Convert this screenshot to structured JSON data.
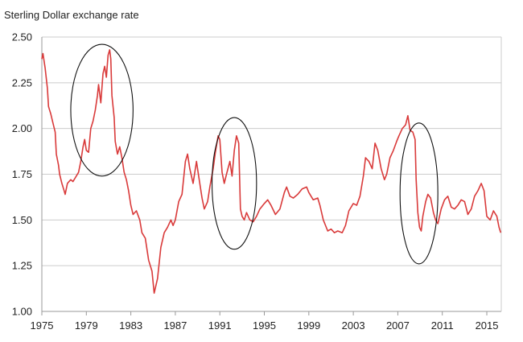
{
  "chart_data": {
    "type": "line",
    "title": "Sterling Dollar exchange rate",
    "xlabel": "",
    "ylabel": "",
    "xlim": [
      1975.0,
      2016.3
    ],
    "ylim": [
      1.0,
      2.5
    ],
    "y_ticks": [
      "1.00",
      "1.25",
      "1.50",
      "1.75",
      "2.00",
      "2.25",
      "2.50"
    ],
    "x_ticks": [
      "1975",
      "1979",
      "1983",
      "1987",
      "1991",
      "1995",
      "1999",
      "2003",
      "2007",
      "2011",
      "2015"
    ],
    "grid": "horizontal",
    "legend": "none",
    "colors": {
      "line": "#d93a3a",
      "grid": "#cccccc",
      "axis": "#999999",
      "circle": "#111111"
    },
    "annotations": [
      {
        "shape": "ellipse",
        "cx": 1980.4,
        "cy": 2.1,
        "rx": 2.8,
        "ry": 0.36
      },
      {
        "shape": "ellipse",
        "cx": 1992.3,
        "cy": 1.7,
        "rx": 2.0,
        "ry": 0.36
      },
      {
        "shape": "ellipse",
        "cx": 2008.9,
        "cy": 1.645,
        "rx": 1.7,
        "ry": 0.385
      }
    ],
    "series": [
      {
        "values": [
          [
            1975.0,
            2.38
          ],
          [
            1975.1,
            2.41
          ],
          [
            1975.3,
            2.33
          ],
          [
            1975.5,
            2.22
          ],
          [
            1975.6,
            2.12
          ],
          [
            1975.8,
            2.08
          ],
          [
            1976.0,
            2.03
          ],
          [
            1976.2,
            1.98
          ],
          [
            1976.3,
            1.86
          ],
          [
            1976.5,
            1.8
          ],
          [
            1976.6,
            1.75
          ],
          [
            1976.8,
            1.7
          ],
          [
            1977.0,
            1.66
          ],
          [
            1977.1,
            1.64
          ],
          [
            1977.3,
            1.7
          ],
          [
            1977.6,
            1.72
          ],
          [
            1977.8,
            1.71
          ],
          [
            1978.0,
            1.73
          ],
          [
            1978.3,
            1.76
          ],
          [
            1978.5,
            1.82
          ],
          [
            1978.7,
            1.9
          ],
          [
            1978.85,
            1.94
          ],
          [
            1979.0,
            1.88
          ],
          [
            1979.2,
            1.87
          ],
          [
            1979.4,
            2.0
          ],
          [
            1979.6,
            2.04
          ],
          [
            1979.8,
            2.1
          ],
          [
            1980.0,
            2.18
          ],
          [
            1980.1,
            2.24
          ],
          [
            1980.3,
            2.14
          ],
          [
            1980.5,
            2.3
          ],
          [
            1980.65,
            2.34
          ],
          [
            1980.8,
            2.28
          ],
          [
            1980.95,
            2.4
          ],
          [
            1981.1,
            2.43
          ],
          [
            1981.2,
            2.38
          ],
          [
            1981.3,
            2.18
          ],
          [
            1981.5,
            2.06
          ],
          [
            1981.6,
            1.93
          ],
          [
            1981.8,
            1.86
          ],
          [
            1982.0,
            1.9
          ],
          [
            1982.2,
            1.84
          ],
          [
            1982.4,
            1.76
          ],
          [
            1982.6,
            1.72
          ],
          [
            1982.8,
            1.66
          ],
          [
            1983.0,
            1.58
          ],
          [
            1983.2,
            1.53
          ],
          [
            1983.5,
            1.55
          ],
          [
            1983.8,
            1.5
          ],
          [
            1984.0,
            1.43
          ],
          [
            1984.3,
            1.4
          ],
          [
            1984.6,
            1.28
          ],
          [
            1984.9,
            1.22
          ],
          [
            1985.1,
            1.1
          ],
          [
            1985.4,
            1.18
          ],
          [
            1985.7,
            1.35
          ],
          [
            1986.0,
            1.43
          ],
          [
            1986.3,
            1.46
          ],
          [
            1986.6,
            1.5
          ],
          [
            1986.8,
            1.47
          ],
          [
            1987.0,
            1.5
          ],
          [
            1987.3,
            1.6
          ],
          [
            1987.6,
            1.64
          ],
          [
            1987.9,
            1.82
          ],
          [
            1988.1,
            1.86
          ],
          [
            1988.3,
            1.78
          ],
          [
            1988.6,
            1.7
          ],
          [
            1988.9,
            1.82
          ],
          [
            1989.1,
            1.74
          ],
          [
            1989.4,
            1.62
          ],
          [
            1989.6,
            1.56
          ],
          [
            1989.9,
            1.6
          ],
          [
            1990.1,
            1.68
          ],
          [
            1990.4,
            1.78
          ],
          [
            1990.6,
            1.87
          ],
          [
            1990.85,
            1.96
          ],
          [
            1991.0,
            1.94
          ],
          [
            1991.2,
            1.76
          ],
          [
            1991.4,
            1.7
          ],
          [
            1991.6,
            1.75
          ],
          [
            1991.9,
            1.82
          ],
          [
            1992.1,
            1.74
          ],
          [
            1992.3,
            1.88
          ],
          [
            1992.5,
            1.96
          ],
          [
            1992.7,
            1.92
          ],
          [
            1992.85,
            1.56
          ],
          [
            1993.0,
            1.52
          ],
          [
            1993.2,
            1.5
          ],
          [
            1993.4,
            1.54
          ],
          [
            1993.7,
            1.5
          ],
          [
            1994.0,
            1.49
          ],
          [
            1994.3,
            1.52
          ],
          [
            1994.6,
            1.56
          ],
          [
            1995.0,
            1.59
          ],
          [
            1995.3,
            1.61
          ],
          [
            1995.6,
            1.58
          ],
          [
            1996.0,
            1.53
          ],
          [
            1996.4,
            1.56
          ],
          [
            1996.8,
            1.65
          ],
          [
            1997.0,
            1.68
          ],
          [
            1997.3,
            1.63
          ],
          [
            1997.6,
            1.62
          ],
          [
            1998.0,
            1.64
          ],
          [
            1998.4,
            1.67
          ],
          [
            1998.8,
            1.68
          ],
          [
            1999.0,
            1.65
          ],
          [
            1999.4,
            1.61
          ],
          [
            1999.8,
            1.62
          ],
          [
            2000.0,
            1.58
          ],
          [
            2000.3,
            1.5
          ],
          [
            2000.7,
            1.44
          ],
          [
            2001.0,
            1.45
          ],
          [
            2001.3,
            1.43
          ],
          [
            2001.6,
            1.44
          ],
          [
            2002.0,
            1.43
          ],
          [
            2002.3,
            1.47
          ],
          [
            2002.6,
            1.55
          ],
          [
            2003.0,
            1.59
          ],
          [
            2003.3,
            1.58
          ],
          [
            2003.6,
            1.63
          ],
          [
            2003.9,
            1.74
          ],
          [
            2004.1,
            1.84
          ],
          [
            2004.4,
            1.82
          ],
          [
            2004.7,
            1.78
          ],
          [
            2004.95,
            1.92
          ],
          [
            2005.2,
            1.88
          ],
          [
            2005.5,
            1.78
          ],
          [
            2005.8,
            1.72
          ],
          [
            2006.0,
            1.75
          ],
          [
            2006.3,
            1.84
          ],
          [
            2006.6,
            1.88
          ],
          [
            2006.9,
            1.93
          ],
          [
            2007.1,
            1.96
          ],
          [
            2007.4,
            2.0
          ],
          [
            2007.7,
            2.02
          ],
          [
            2007.9,
            2.07
          ],
          [
            2008.1,
            1.99
          ],
          [
            2008.35,
            1.98
          ],
          [
            2008.55,
            1.94
          ],
          [
            2008.65,
            1.72
          ],
          [
            2008.8,
            1.54
          ],
          [
            2008.95,
            1.46
          ],
          [
            2009.1,
            1.44
          ],
          [
            2009.25,
            1.52
          ],
          [
            2009.5,
            1.6
          ],
          [
            2009.7,
            1.64
          ],
          [
            2009.95,
            1.62
          ],
          [
            2010.2,
            1.54
          ],
          [
            2010.4,
            1.5
          ],
          [
            2010.6,
            1.48
          ],
          [
            2010.9,
            1.56
          ],
          [
            2011.2,
            1.61
          ],
          [
            2011.5,
            1.63
          ],
          [
            2011.8,
            1.57
          ],
          [
            2012.1,
            1.56
          ],
          [
            2012.4,
            1.58
          ],
          [
            2012.7,
            1.61
          ],
          [
            2013.0,
            1.6
          ],
          [
            2013.3,
            1.53
          ],
          [
            2013.6,
            1.56
          ],
          [
            2013.9,
            1.63
          ],
          [
            2014.2,
            1.66
          ],
          [
            2014.5,
            1.7
          ],
          [
            2014.75,
            1.66
          ],
          [
            2015.0,
            1.52
          ],
          [
            2015.3,
            1.5
          ],
          [
            2015.6,
            1.55
          ],
          [
            2015.9,
            1.52
          ],
          [
            2016.1,
            1.46
          ],
          [
            2016.25,
            1.43
          ]
        ]
      }
    ]
  }
}
